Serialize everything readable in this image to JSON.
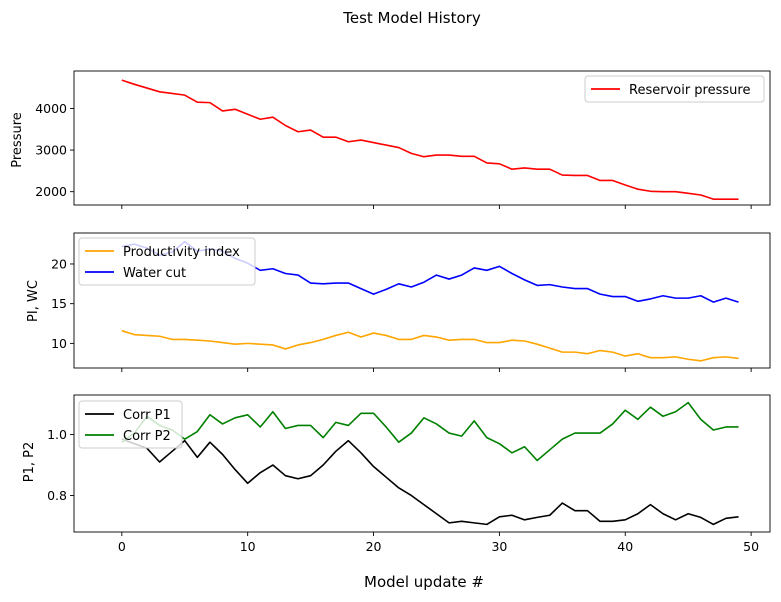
{
  "figure": {
    "title": "Test Model History",
    "xlabel": "Model update #"
  },
  "chart_data": [
    {
      "type": "line",
      "ylabel": "Pressure",
      "xlim": [
        -3.8,
        51.5
      ],
      "ylim": [
        1680,
        4900
      ],
      "xticks": [
        0,
        10,
        20,
        30,
        40,
        50
      ],
      "yticks": [
        2000,
        3000,
        4000
      ],
      "ytick_labels": [
        "2000",
        "3000",
        "4000"
      ],
      "legend_position": "upper right",
      "x": [
        0,
        1,
        2,
        3,
        4,
        5,
        6,
        7,
        8,
        9,
        10,
        11,
        12,
        13,
        14,
        15,
        16,
        17,
        18,
        19,
        20,
        21,
        22,
        23,
        24,
        25,
        26,
        27,
        28,
        29,
        30,
        31,
        32,
        33,
        34,
        35,
        36,
        37,
        38,
        39,
        40,
        41,
        42,
        43,
        44,
        45,
        46,
        47,
        48,
        49
      ],
      "series": [
        {
          "name": "Reservoir pressure",
          "color": "#ff0000",
          "values": [
            4680,
            4580,
            4490,
            4400,
            4360,
            4320,
            4150,
            4140,
            3940,
            3980,
            3860,
            3740,
            3790,
            3590,
            3440,
            3480,
            3310,
            3310,
            3200,
            3240,
            3180,
            3120,
            3060,
            2920,
            2840,
            2880,
            2880,
            2850,
            2850,
            2690,
            2670,
            2540,
            2570,
            2540,
            2540,
            2400,
            2390,
            2390,
            2270,
            2270,
            2160,
            2060,
            2010,
            2000,
            2000,
            1960,
            1920,
            1820,
            1820,
            1820
          ]
        }
      ]
    },
    {
      "type": "line",
      "ylabel": "PI, WC",
      "xlim": [
        -3.8,
        51.5
      ],
      "ylim": [
        6.9,
        23.9
      ],
      "xticks": [
        0,
        10,
        20,
        30,
        40,
        50
      ],
      "yticks": [
        10,
        15,
        20
      ],
      "ytick_labels": [
        "10",
        "15",
        "20"
      ],
      "legend_position": "upper left",
      "x": [
        0,
        1,
        2,
        3,
        4,
        5,
        6,
        7,
        8,
        9,
        10,
        11,
        12,
        13,
        14,
        15,
        16,
        17,
        18,
        19,
        20,
        21,
        22,
        23,
        24,
        25,
        26,
        27,
        28,
        29,
        30,
        31,
        32,
        33,
        34,
        35,
        36,
        37,
        38,
        39,
        40,
        41,
        42,
        43,
        44,
        45,
        46,
        47,
        48,
        49
      ],
      "series": [
        {
          "name": "Productivity index",
          "color": "#ffa500",
          "values": [
            11.6,
            11.1,
            11.0,
            10.9,
            10.5,
            10.5,
            10.4,
            10.3,
            10.1,
            9.9,
            10.0,
            9.9,
            9.8,
            9.3,
            9.8,
            10.1,
            10.5,
            11.0,
            11.4,
            10.8,
            11.3,
            11.0,
            10.5,
            10.5,
            11.0,
            10.8,
            10.4,
            10.5,
            10.5,
            10.1,
            10.1,
            10.4,
            10.3,
            9.9,
            9.4,
            8.9,
            8.9,
            8.7,
            9.1,
            8.9,
            8.4,
            8.7,
            8.2,
            8.2,
            8.3,
            8.0,
            7.8,
            8.2,
            8.3,
            8.1
          ]
        },
        {
          "name": "Water cut",
          "color": "#0000ff",
          "values": [
            22.2,
            22.5,
            22.0,
            21.1,
            21.5,
            22.8,
            21.6,
            21.9,
            21.6,
            20.7,
            20.1,
            19.2,
            19.4,
            18.8,
            18.6,
            17.6,
            17.5,
            17.6,
            17.6,
            16.9,
            16.2,
            16.8,
            17.5,
            17.1,
            17.7,
            18.6,
            18.1,
            18.6,
            19.5,
            19.2,
            19.7,
            18.8,
            18.0,
            17.3,
            17.4,
            17.1,
            16.9,
            16.9,
            16.2,
            15.9,
            15.9,
            15.3,
            15.6,
            16.0,
            15.7,
            15.7,
            16.0,
            15.2,
            15.7,
            15.2
          ]
        }
      ]
    },
    {
      "type": "line",
      "ylabel": "P1, P2",
      "xlim": [
        -3.8,
        51.5
      ],
      "ylim": [
        0.68,
        1.13
      ],
      "xticks": [
        0,
        10,
        20,
        30,
        40,
        50
      ],
      "xtick_labels": [
        "0",
        "10",
        "20",
        "30",
        "40",
        "50"
      ],
      "yticks": [
        0.8,
        1.0
      ],
      "ytick_labels": [
        "0.8",
        "1.0"
      ],
      "legend_position": "upper left",
      "x": [
        0,
        1,
        2,
        3,
        4,
        5,
        6,
        7,
        8,
        9,
        10,
        11,
        12,
        13,
        14,
        15,
        16,
        17,
        18,
        19,
        20,
        21,
        22,
        23,
        24,
        25,
        26,
        27,
        28,
        29,
        30,
        31,
        32,
        33,
        34,
        35,
        36,
        37,
        38,
        39,
        40,
        41,
        42,
        43,
        44,
        45,
        46,
        47,
        48,
        49
      ],
      "series": [
        {
          "name": "Corr P1",
          "color": "#000000",
          "values": [
            0.985,
            0.97,
            0.955,
            0.91,
            0.945,
            0.98,
            0.925,
            0.975,
            0.935,
            0.885,
            0.84,
            0.875,
            0.9,
            0.865,
            0.855,
            0.865,
            0.9,
            0.945,
            0.98,
            0.94,
            0.895,
            0.86,
            0.825,
            0.8,
            0.77,
            0.74,
            0.71,
            0.715,
            0.71,
            0.705,
            0.73,
            0.735,
            0.72,
            0.728,
            0.735,
            0.775,
            0.75,
            0.75,
            0.715,
            0.715,
            0.72,
            0.74,
            0.77,
            0.74,
            0.72,
            0.74,
            0.728,
            0.705,
            0.725,
            0.73
          ]
        },
        {
          "name": "Corr P2",
          "color": "#008000",
          "values": [
            0.975,
            1.005,
            1.06,
            1.03,
            1.015,
            0.985,
            1.01,
            1.065,
            1.035,
            1.055,
            1.065,
            1.025,
            1.075,
            1.02,
            1.03,
            1.03,
            0.99,
            1.04,
            1.03,
            1.07,
            1.07,
            1.025,
            0.975,
            1.005,
            1.055,
            1.035,
            1.005,
            0.995,
            1.045,
            0.99,
            0.97,
            0.94,
            0.96,
            0.915,
            0.95,
            0.985,
            1.005,
            1.005,
            1.005,
            1.035,
            1.08,
            1.05,
            1.09,
            1.06,
            1.075,
            1.105,
            1.05,
            1.015,
            1.025,
            1.025
          ]
        }
      ]
    }
  ]
}
